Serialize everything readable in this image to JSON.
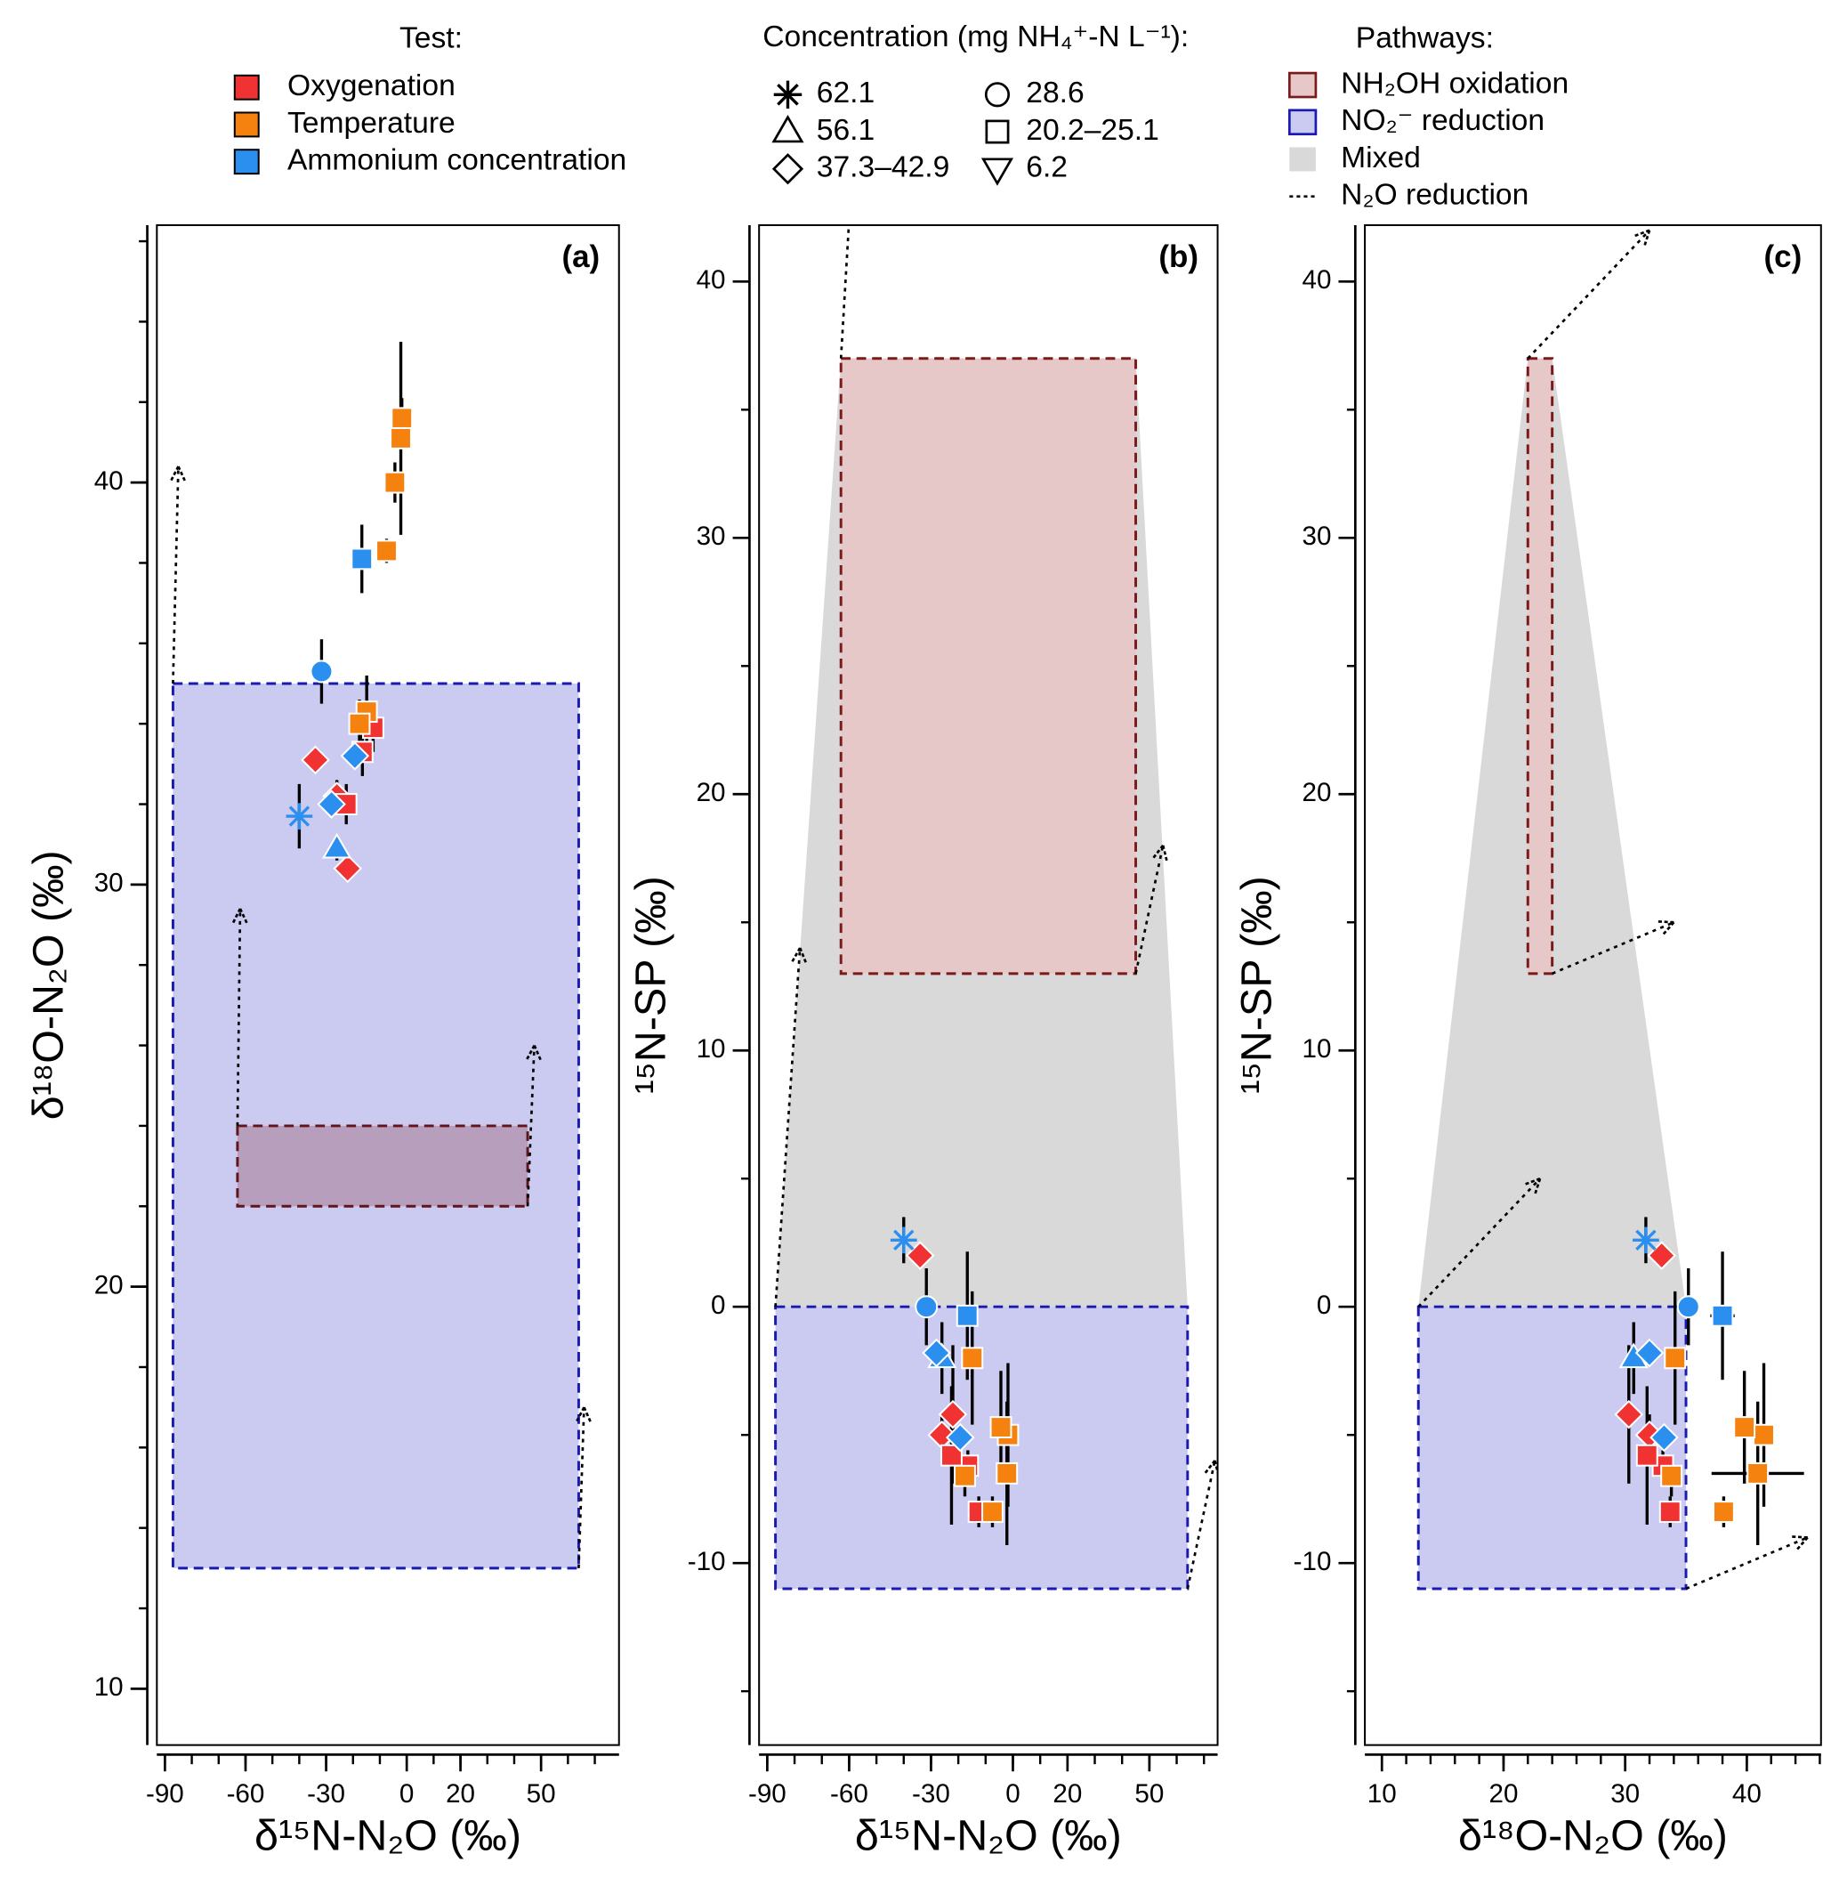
{
  "legend": {
    "test": {
      "title": "Test:",
      "items": [
        {
          "label": "Oxygenation",
          "color": "#f03232"
        },
        {
          "label": "Temperature",
          "color": "#f5820f"
        },
        {
          "label": "Ammonium concentration",
          "color": "#2b8ff0"
        }
      ]
    },
    "concentration": {
      "title": "Concentration (mg NH₄⁺-N L⁻¹):",
      "items": [
        {
          "label": "62.1",
          "marker": "star"
        },
        {
          "label": "56.1",
          "marker": "triangle"
        },
        {
          "label": "37.3–42.9",
          "marker": "diamond"
        },
        {
          "label": "28.6",
          "marker": "circle"
        },
        {
          "label": "20.2–25.1",
          "marker": "square"
        },
        {
          "label": "6.2",
          "marker": "triangle-down"
        }
      ]
    },
    "pathways": {
      "title": "Pathways:",
      "items": [
        {
          "label": "NH₂OH oxidation",
          "style": "box",
          "fill": "#e6c8c8",
          "stroke": "#7a1a1a"
        },
        {
          "label": "NO₂⁻ reduction",
          "style": "box",
          "fill": "#cbcaf1",
          "stroke": "#1a1ab0"
        },
        {
          "label": "Mixed",
          "style": "box",
          "fill": "#d9d9d9"
        },
        {
          "label": "N₂O reduction",
          "style": "dotted",
          "stroke": "#000000"
        }
      ]
    }
  },
  "chart_data": [
    {
      "type": "scatter",
      "label": "(a)",
      "xlabel": "δ¹⁵N-N₂O (‰)",
      "ylabel": "δ¹⁸O-N₂O (‰)",
      "xlim": [
        -93,
        79
      ],
      "ylim": [
        8.6,
        46.4
      ],
      "xticks": [
        -90,
        -60,
        -30,
        0,
        20,
        50
      ],
      "xminor": [
        -90,
        -80,
        -70,
        -60,
        -50,
        -40,
        -30,
        -20,
        -10,
        0,
        10,
        20,
        30,
        40,
        50,
        60,
        70
      ],
      "yticks": [
        10,
        20,
        30,
        40
      ],
      "yminor": [
        10,
        12,
        14,
        16,
        18,
        20,
        22,
        24,
        26,
        28,
        30,
        32,
        34,
        36,
        38,
        40,
        42,
        44,
        46
      ],
      "regions": [
        {
          "x": [
            -87,
            64
          ],
          "y": [
            13,
            35
          ],
          "fill": "#cbcaf1",
          "stroke": "#1a1ab0"
        },
        {
          "x": [
            -63,
            45
          ],
          "y": [
            22,
            24
          ],
          "fill": "#e6c8c8",
          "stroke": "#7a1a1a"
        }
      ],
      "arrows": [
        {
          "x": [
            -87,
            -85
          ],
          "y": [
            35,
            40.4
          ]
        },
        {
          "x": [
            -63,
            -62
          ],
          "y": [
            24,
            29.4
          ]
        },
        {
          "x": [
            45,
            47.5
          ],
          "y": [
            22,
            26
          ]
        },
        {
          "x": [
            64,
            66
          ],
          "y": [
            13,
            17
          ]
        }
      ],
      "series": [
        {
          "color": "#f03232",
          "x": [
            -34,
            -26,
            -22,
            -12.5,
            -16.5,
            -22.5
          ],
          "values": [
            33.1,
            32.2,
            30.4,
            33.9,
            33.3,
            32.0
          ],
          "yerr": [
            0.3,
            0.4,
            0.3,
            0.6,
            0.6,
            0.5
          ],
          "markers": [
            "diamond",
            "diamond",
            "diamond",
            "square",
            "square",
            "square"
          ]
        },
        {
          "color": "#f5820f",
          "x": [
            -1.8,
            -2.2,
            -4.4,
            -7.5,
            -14.9,
            -17.6
          ],
          "values": [
            41.6,
            41.1,
            40.0,
            38.3,
            34.3,
            34.0
          ],
          "yerr": [
            0.5,
            2.4,
            0.5,
            0.3,
            0.9,
            0.6
          ],
          "markers": [
            "square",
            "square",
            "square",
            "square",
            "square",
            "square"
          ]
        },
        {
          "color": "#2b8ff0",
          "x": [
            -40,
            -31.7,
            -16.7,
            -26,
            -28,
            -19.3
          ],
          "values": [
            31.7,
            35.3,
            38.1,
            30.9,
            32.0,
            33.2
          ],
          "yerr": [
            0.8,
            0.8,
            0.85,
            0.3,
            0.3,
            0.3
          ],
          "markers": [
            "star",
            "circle",
            "square",
            "triangle",
            "diamond",
            "diamond"
          ]
        }
      ]
    },
    {
      "type": "scatter",
      "label": "(b)",
      "xlabel": "δ¹⁵N-N₂O (‰)",
      "ylabel": "¹⁵N-SP (‰)",
      "xlim": [
        -93,
        75
      ],
      "ylim": [
        -17.1,
        42.2
      ],
      "xticks": [
        -90,
        -60,
        -30,
        0,
        20,
        50
      ],
      "xminor": [
        -90,
        -80,
        -70,
        -60,
        -50,
        -40,
        -30,
        -20,
        -10,
        0,
        10,
        20,
        30,
        40,
        50,
        60,
        70
      ],
      "yticks": [
        -10,
        0,
        10,
        20,
        30,
        40
      ],
      "yminor": [
        -15,
        -10,
        -5,
        0,
        5,
        10,
        15,
        20,
        25,
        30,
        35,
        40
      ],
      "mixed_color": "#d9d9d9",
      "regions": [
        {
          "x": [
            -87,
            64
          ],
          "y": [
            -11,
            0
          ],
          "fill": "#cbcaf1",
          "stroke": "#1a1ab0"
        },
        {
          "x": [
            -63,
            45
          ],
          "y": [
            13,
            37
          ],
          "fill": "#e6c8c8",
          "stroke": "#7a1a1a"
        }
      ],
      "arrows": [
        {
          "x": [
            -87,
            -78
          ],
          "y": [
            0,
            14
          ]
        },
        {
          "x": [
            -63,
            -58
          ],
          "y": [
            37,
            46
          ]
        },
        {
          "x": [
            45,
            55
          ],
          "y": [
            13,
            18
          ]
        },
        {
          "x": [
            64,
            74
          ],
          "y": [
            -11,
            -6
          ]
        }
      ],
      "series": [
        {
          "color": "#f03232",
          "x": [
            -34,
            -26,
            -22,
            -12.5,
            -16.5,
            -22.5
          ],
          "values": [
            2.0,
            -5.0,
            -4.2,
            -8.0,
            -6.2,
            -5.8
          ],
          "yerr": [
            0.3,
            0.8,
            2.7,
            0.6,
            0.6,
            2.7
          ],
          "markers": [
            "diamond",
            "diamond",
            "diamond",
            "square",
            "square",
            "square"
          ]
        },
        {
          "color": "#f5820f",
          "x": [
            -1.8,
            -2.2,
            -4.4,
            -7.5,
            -14.9,
            -17.6
          ],
          "values": [
            -5.0,
            -6.5,
            -4.7,
            -8.0,
            -2.0,
            -6.6
          ],
          "yerr": [
            2.8,
            2.8,
            2.2,
            0.6,
            2.6,
            0.8
          ],
          "markers": [
            "square",
            "square",
            "square",
            "square",
            "square",
            "square"
          ]
        },
        {
          "color": "#2b8ff0",
          "x": [
            -40,
            -31.7,
            -16.7,
            -26,
            -28,
            -19.3
          ],
          "values": [
            2.6,
            0,
            -0.35,
            -2.0,
            -1.8,
            -5.1
          ],
          "yerr": [
            0.9,
            1.5,
            2.5,
            1.4,
            0.5,
            0.5
          ],
          "markers": [
            "star",
            "circle",
            "square",
            "triangle",
            "diamond",
            "diamond"
          ]
        }
      ]
    },
    {
      "type": "scatter",
      "label": "(c)",
      "xlabel": "δ¹⁸O-N₂O (‰)",
      "ylabel": "¹⁵N-SP (‰)",
      "xlim": [
        8.6,
        46.1
      ],
      "ylim": [
        -17.1,
        42.2
      ],
      "xticks": [
        10,
        20,
        30,
        40
      ],
      "xminor": [
        10,
        12,
        14,
        16,
        18,
        20,
        22,
        24,
        26,
        28,
        30,
        32,
        34,
        36,
        38,
        40,
        42,
        44,
        46
      ],
      "yticks": [
        -10,
        0,
        10,
        20,
        30,
        40
      ],
      "yminor": [
        -15,
        -10,
        -5,
        0,
        5,
        10,
        15,
        20,
        25,
        30,
        35,
        40
      ],
      "mixed_color": "#d9d9d9",
      "regions": [
        {
          "x": [
            13,
            35
          ],
          "y": [
            -11,
            0
          ],
          "fill": "#cbcaf1",
          "stroke": "#1a1ab0"
        },
        {
          "x": [
            22,
            24
          ],
          "y": [
            13,
            37
          ],
          "fill": "#e6c8c8",
          "stroke": "#7a1a1a"
        }
      ],
      "arrows": [
        {
          "x": [
            13,
            23
          ],
          "y": [
            0,
            5
          ]
        },
        {
          "x": [
            22,
            32
          ],
          "y": [
            37,
            42
          ]
        },
        {
          "x": [
            24,
            34
          ],
          "y": [
            13,
            15
          ]
        },
        {
          "x": [
            35,
            45
          ],
          "y": [
            -11,
            -9
          ]
        }
      ],
      "series": [
        {
          "color": "#f03232",
          "x": [
            33.0,
            32.0,
            30.3,
            33.7,
            33.1,
            31.8
          ],
          "values": [
            2.0,
            -5.0,
            -4.2,
            -8.0,
            -6.2,
            -5.8
          ],
          "xerr": [
            null,
            null,
            null,
            null,
            null,
            null
          ],
          "yerr": [
            0.3,
            0.8,
            2.7,
            0.6,
            0.6,
            2.7
          ],
          "markers": [
            "diamond",
            "diamond",
            "diamond",
            "square",
            "square",
            "square"
          ]
        },
        {
          "color": "#f5820f",
          "x": [
            41.4,
            40.9,
            39.8,
            38.1,
            34.1,
            33.8
          ],
          "values": [
            -5.0,
            -6.5,
            -4.7,
            -8.0,
            -2.0,
            -6.6
          ],
          "xerr": [
            null,
            3.8,
            null,
            null,
            null,
            null
          ],
          "yerr": [
            2.8,
            2.8,
            2.2,
            0.6,
            2.6,
            0.8
          ],
          "markers": [
            "square",
            "square",
            "square",
            "square",
            "square",
            "square"
          ]
        },
        {
          "color": "#2b8ff0",
          "x": [
            31.7,
            35.2,
            38.0,
            30.7,
            32.0,
            33.2
          ],
          "values": [
            2.6,
            0,
            -0.35,
            -2.0,
            -1.8,
            -5.1
          ],
          "xerr": [
            null,
            null,
            1.0,
            null,
            null,
            null
          ],
          "yerr": [
            0.9,
            1.5,
            2.5,
            1.4,
            0.5,
            0.5
          ],
          "markers": [
            "star",
            "circle",
            "square",
            "triangle",
            "diamond",
            "diamond"
          ]
        }
      ]
    }
  ]
}
